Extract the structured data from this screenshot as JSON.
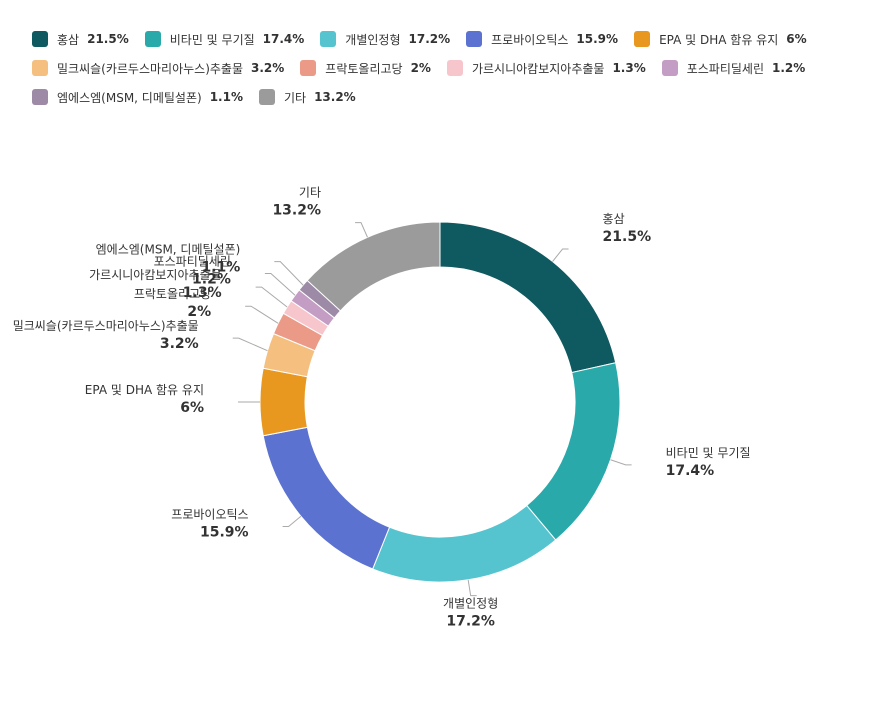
{
  "chart_data": {
    "type": "pie",
    "donut": true,
    "legend_position": "top",
    "categories": [
      "홍삼",
      "비타민 및 무기질",
      "개별인정형",
      "프로바이오틱스",
      "EPA 및 DHA 함유 유지",
      "밀크씨슬(카르두스마리아누스)추출물",
      "프락토올리고당",
      "가르시니아캄보지아추출물",
      "포스파티딜세린",
      "엠에스엠(MSM, 디메틸설폰)",
      "기타"
    ],
    "values": [
      21.5,
      17.4,
      17.2,
      15.9,
      6,
      3.2,
      2,
      1.3,
      1.2,
      1.1,
      13.2
    ],
    "value_labels": [
      "21.5%",
      "17.4%",
      "17.2%",
      "15.9%",
      "6%",
      "3.2%",
      "2%",
      "1.3%",
      "1.2%",
      "1.1%",
      "13.2%"
    ],
    "colors": [
      "#0e5a60",
      "#2aa9ab",
      "#55c4ce",
      "#5b72d0",
      "#e8981f",
      "#f5c07f",
      "#ea9a87",
      "#f7c6cd",
      "#c49dc4",
      "#9c8aa7",
      "#9b9b9b"
    ]
  }
}
